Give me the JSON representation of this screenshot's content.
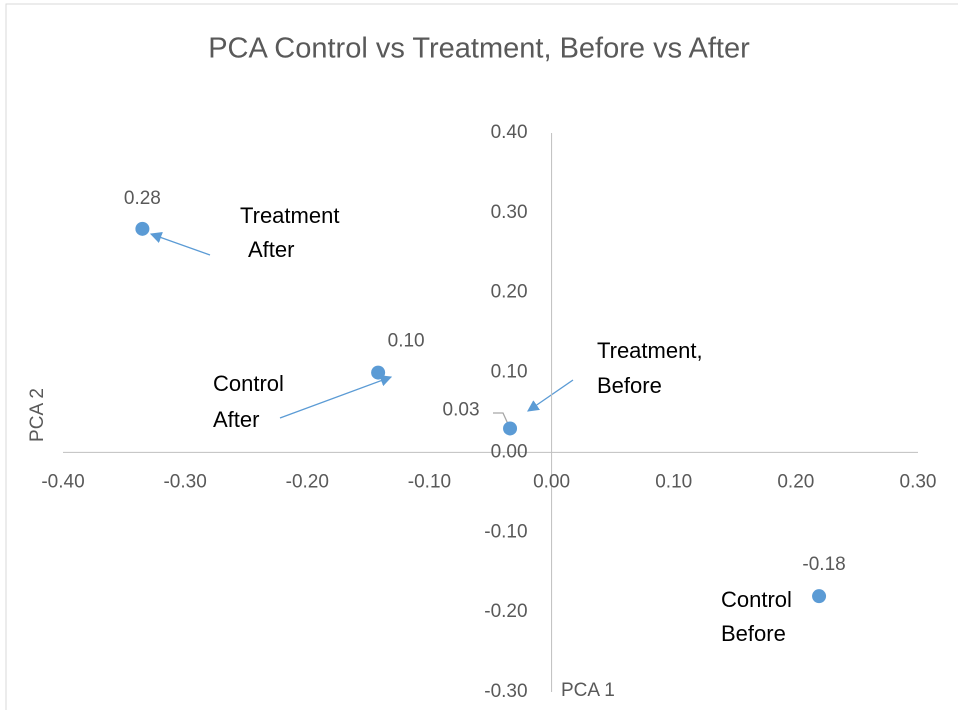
{
  "chart_data": {
    "type": "scatter",
    "title": "PCA Control vs Treatment, Before vs After",
    "x_label": "PCA 1",
    "y_label": "PCA 2",
    "series": [
      {
        "name": "PCA",
        "color": "#5b9bd5",
        "x": [
          -0.335,
          -0.142,
          -0.034,
          0.219
        ],
        "values": [
          0.28,
          0.1,
          0.03,
          -0.18
        ],
        "value_labels": [
          "0.28",
          "0.10",
          "0.03",
          "-0.18"
        ]
      }
    ],
    "xlim": [
      -0.4,
      0.3
    ],
    "xticks": [
      {
        "value": -0.4,
        "label": "-0.40"
      },
      {
        "value": -0.3,
        "label": "-0.30"
      },
      {
        "value": -0.2,
        "label": "-0.20"
      },
      {
        "value": -0.1,
        "label": "-0.10"
      },
      {
        "value": 0,
        "label": "0.00"
      },
      {
        "value": 0.1,
        "label": "0.10"
      },
      {
        "value": 0.2,
        "label": "0.20"
      },
      {
        "value": 0.3,
        "label": "0.30"
      }
    ],
    "ylim": [
      -0.3,
      0.4
    ],
    "yticks": [
      {
        "value": 0.4,
        "label": "0.40"
      },
      {
        "value": 0.3,
        "label": "0.30"
      },
      {
        "value": 0.2,
        "label": "0.20"
      },
      {
        "value": 0.1,
        "label": "0.10"
      },
      {
        "value": 0,
        "label": "0.00"
      },
      {
        "value": -0.1,
        "label": "-0.10"
      },
      {
        "value": -0.2,
        "label": "-0.20"
      },
      {
        "value": -0.3,
        "label": "-0.30"
      }
    ],
    "grid": false,
    "annotations": [
      [
        "Treatment",
        "After"
      ],
      [
        "Control",
        "After"
      ],
      [
        "Treatment,",
        "Before"
      ],
      [
        "Control",
        "Before"
      ]
    ]
  }
}
